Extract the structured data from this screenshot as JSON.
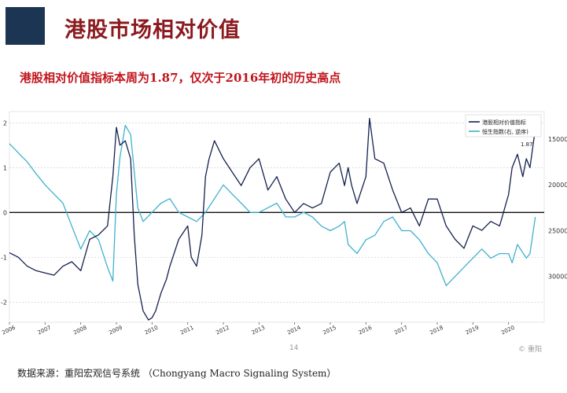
{
  "header": {
    "title": "港股市场相对价值",
    "subtitle": "港股相对价值指标本周为1.87，仅次于2016年初的历史高点"
  },
  "footer": {
    "source": "数据来源：重阳宏观信号系统 （Chongyang Macro Signaling System）",
    "page_number": "14",
    "brand": "© 重阳"
  },
  "colors": {
    "navy": "#1c3553",
    "title_red": "#8b1a1f",
    "subtitle_red": "#c0141b",
    "series1": "#14214d",
    "series2": "#3fb1cf"
  },
  "chart_data": {
    "type": "line",
    "x_axis": {
      "labels": [
        "2006",
        "2007",
        "2008",
        "2009",
        "2010",
        "2011",
        "2012",
        "2013",
        "2014",
        "2015",
        "2016",
        "2017",
        "2018",
        "2019",
        "2020"
      ],
      "range": [
        2006,
        2021
      ]
    },
    "y_left": {
      "ticks": [
        "2",
        "1",
        "0",
        "-1",
        "-2"
      ],
      "range": [
        -2.45,
        2.25
      ]
    },
    "y_right": {
      "ticks": [
        "15000",
        "20000",
        "25000",
        "30000"
      ],
      "range": [
        12000,
        35000
      ],
      "inverted": true
    },
    "legend": {
      "placement": "top-right",
      "last_value_note": "1.87"
    },
    "series": [
      {
        "name": "港股相对价值指标",
        "axis": "left",
        "x": [
          2006.0,
          2006.25,
          2006.5,
          2006.75,
          2007.0,
          2007.25,
          2007.5,
          2007.75,
          2008.0,
          2008.25,
          2008.5,
          2008.75,
          2008.9,
          2009.0,
          2009.1,
          2009.25,
          2009.4,
          2009.5,
          2009.6,
          2009.75,
          2009.9,
          2010.0,
          2010.1,
          2010.25,
          2010.4,
          2010.5,
          2010.75,
          2011.0,
          2011.1,
          2011.25,
          2011.4,
          2011.5,
          2011.6,
          2011.75,
          2012.0,
          2012.25,
          2012.5,
          2012.75,
          2013.0,
          2013.25,
          2013.5,
          2013.75,
          2014.0,
          2014.25,
          2014.5,
          2014.75,
          2015.0,
          2015.25,
          2015.4,
          2015.5,
          2015.6,
          2015.75,
          2016.0,
          2016.1,
          2016.25,
          2016.5,
          2016.75,
          2017.0,
          2017.25,
          2017.5,
          2017.75,
          2018.0,
          2018.25,
          2018.5,
          2018.75,
          2019.0,
          2019.25,
          2019.5,
          2019.75,
          2020.0,
          2020.1,
          2020.25,
          2020.4,
          2020.5,
          2020.6,
          2020.75
        ],
        "values": [
          -0.9,
          -1.0,
          -1.2,
          -1.3,
          -1.35,
          -1.4,
          -1.2,
          -1.1,
          -1.3,
          -0.6,
          -0.5,
          -0.3,
          0.8,
          1.9,
          1.5,
          1.6,
          1.2,
          -0.5,
          -1.6,
          -2.2,
          -2.4,
          -2.35,
          -2.2,
          -1.8,
          -1.5,
          -1.2,
          -0.6,
          -0.3,
          -1.0,
          -1.2,
          -0.5,
          0.8,
          1.2,
          1.6,
          1.2,
          0.9,
          0.6,
          1.0,
          1.2,
          0.5,
          0.8,
          0.3,
          0.0,
          0.2,
          0.1,
          0.2,
          0.9,
          1.1,
          0.6,
          1.0,
          0.6,
          0.2,
          0.8,
          2.1,
          1.2,
          1.1,
          0.5,
          0.0,
          0.1,
          -0.3,
          0.3,
          0.3,
          -0.3,
          -0.6,
          -0.8,
          -0.3,
          -0.4,
          -0.2,
          -0.3,
          0.4,
          1.0,
          1.3,
          0.8,
          1.2,
          1.0,
          1.87
        ]
      },
      {
        "name": "恒生指数(右, 逆序)",
        "axis": "right",
        "x": [
          2006.0,
          2006.25,
          2006.5,
          2006.75,
          2007.0,
          2007.25,
          2007.5,
          2007.75,
          2008.0,
          2008.25,
          2008.5,
          2008.75,
          2008.9,
          2009.0,
          2009.1,
          2009.25,
          2009.4,
          2009.5,
          2009.6,
          2009.75,
          2010.0,
          2010.25,
          2010.5,
          2010.75,
          2011.0,
          2011.25,
          2011.5,
          2011.75,
          2012.0,
          2012.25,
          2012.5,
          2012.75,
          2013.0,
          2013.25,
          2013.5,
          2013.75,
          2014.0,
          2014.25,
          2014.5,
          2014.75,
          2015.0,
          2015.25,
          2015.4,
          2015.5,
          2015.75,
          2016.0,
          2016.25,
          2016.5,
          2016.75,
          2017.0,
          2017.25,
          2017.5,
          2017.75,
          2018.0,
          2018.1,
          2018.25,
          2018.5,
          2018.75,
          2019.0,
          2019.25,
          2019.5,
          2019.75,
          2020.0,
          2020.1,
          2020.25,
          2020.5,
          2020.6,
          2020.75
        ],
        "values": [
          15500,
          16500,
          17500,
          18800,
          20000,
          21000,
          22000,
          24500,
          27000,
          25000,
          26000,
          29000,
          30500,
          21000,
          17000,
          13500,
          14500,
          18500,
          22500,
          24000,
          23000,
          22000,
          21500,
          23000,
          23500,
          24000,
          23000,
          21500,
          20000,
          21000,
          22000,
          23000,
          23000,
          22500,
          22000,
          23500,
          23500,
          23000,
          23500,
          24500,
          25000,
          24500,
          24000,
          26500,
          27500,
          26000,
          25500,
          24000,
          23500,
          25000,
          25000,
          26000,
          27500,
          28500,
          29500,
          31000,
          30000,
          29000,
          28000,
          27000,
          28000,
          27500,
          27500,
          28500,
          26500,
          28000,
          27500,
          23500
        ]
      }
    ]
  }
}
